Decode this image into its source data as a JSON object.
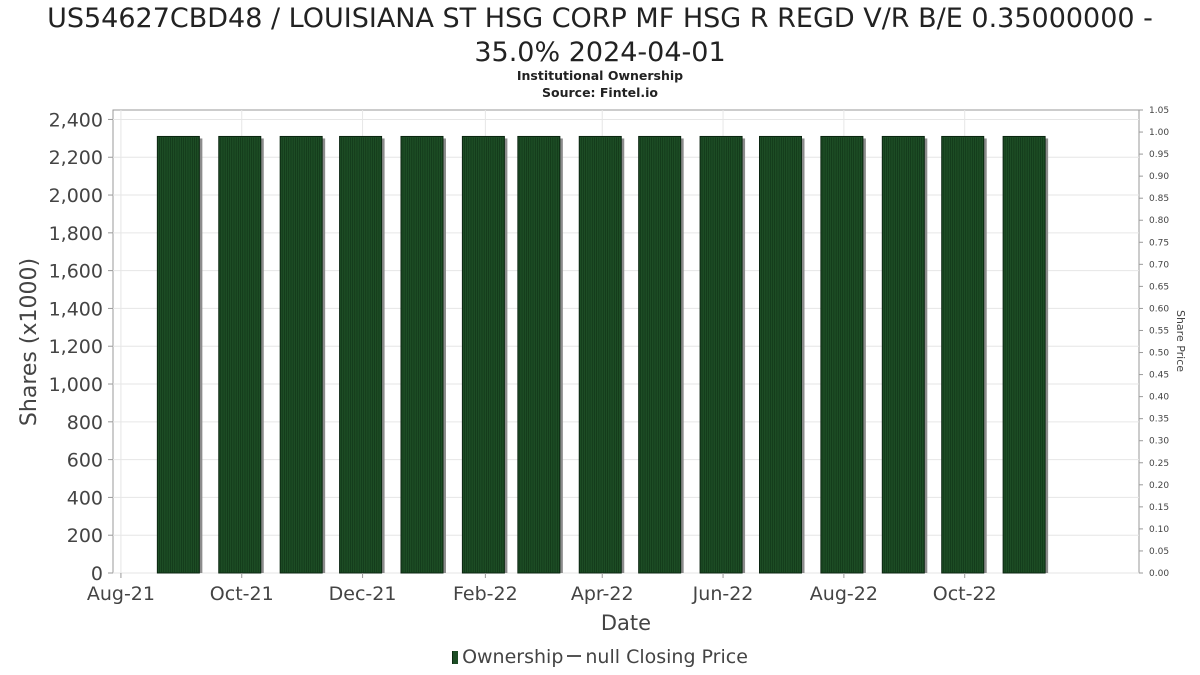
{
  "header": {
    "title_line1": "US54627CBD48 / LOUISIANA ST HSG CORP MF HSG R REGD V/R B/E 0.35000000 -",
    "title_line2": "35.0% 2024-04-01",
    "subtitle": "Institutional Ownership",
    "source": "Source: Fintel.io"
  },
  "legend": {
    "ownership_label": "Ownership",
    "price_label": "null Closing Price"
  },
  "colors": {
    "bar_fill": "#1d4d25",
    "bar_stripe": "#0f3316",
    "bar_shadow": "#8c8c8c",
    "grid": "#e6e6e6",
    "axis": "#999999"
  },
  "chart_data": {
    "type": "bar",
    "title": "US54627CBD48 / LOUISIANA ST HSG CORP MF HSG R REGD V/R B/E 0.35000000 - 35.0% 2024-04-01",
    "xlabel": "Date",
    "ylabel": "Shares (x1000)",
    "y2label": "Share Price",
    "x_tick_labels": [
      "Aug-21",
      "Oct-21",
      "Dec-21",
      "Feb-22",
      "Apr-22",
      "Jun-22",
      "Aug-22",
      "Oct-22"
    ],
    "x_tick_dates": [
      "2021-08-01",
      "2021-10-01",
      "2021-12-01",
      "2022-02-01",
      "2022-04-01",
      "2022-06-01",
      "2022-08-01",
      "2022-10-01"
    ],
    "x_range": [
      "2021-07-28",
      "2022-12-28"
    ],
    "ylim": [
      0,
      2450
    ],
    "y_ticks": [
      0,
      200,
      400,
      600,
      800,
      1000,
      1200,
      1400,
      1600,
      1800,
      2000,
      2200,
      2400
    ],
    "y2lim": [
      0,
      1.05
    ],
    "y2_ticks": [
      "0.00",
      "0.05",
      "0.10",
      "0.15",
      "0.20",
      "0.25",
      "0.30",
      "0.35",
      "0.40",
      "0.45",
      "0.50",
      "0.55",
      "0.60",
      "0.65",
      "0.70",
      "0.75",
      "0.80",
      "0.85",
      "0.90",
      "0.95",
      "1.00",
      "1.05"
    ],
    "grid": true,
    "legend_position": "bottom",
    "series": [
      {
        "name": "Ownership",
        "x": [
          "2021-08-30",
          "2021-09-30",
          "2021-10-31",
          "2021-11-30",
          "2021-12-31",
          "2022-01-31",
          "2022-02-28",
          "2022-03-31",
          "2022-04-30",
          "2022-05-31",
          "2022-06-30",
          "2022-07-31",
          "2022-08-31",
          "2022-09-30",
          "2022-10-31"
        ],
        "values": [
          2310,
          2310,
          2310,
          2310,
          2310,
          2310,
          2310,
          2310,
          2310,
          2310,
          2310,
          2310,
          2310,
          2310,
          2310
        ]
      }
    ]
  }
}
